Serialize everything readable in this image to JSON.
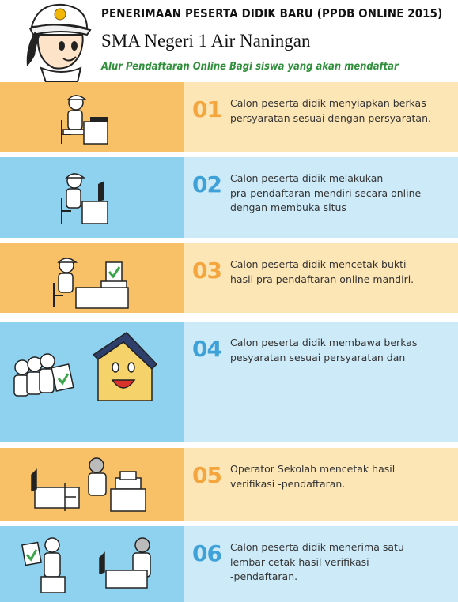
{
  "header": {
    "title": "PENERIMAAN PESERTA DIDIK BARU (PPDB ONLINE 2015)",
    "school": "SMA Negeri 1 Air Naningan",
    "subtitle": "Alur Pendaftaran Online Bagi siswa yang akan mendaftar"
  },
  "colors": {
    "orange_dark": "#f9c167",
    "orange_light": "#fde6b5",
    "blue_dark": "#8fd2ef",
    "blue_light": "#cdeaf8",
    "title_green": "#2f8f3a"
  },
  "steps": [
    {
      "number": "01",
      "lines": [
        "Calon peserta didik menyiapkan berkas",
        "persyaratan sesuai dengan persyaratan."
      ]
    },
    {
      "number": "02",
      "lines": [
        "Calon peserta didik melakukan",
        "pra-pendaftaran mendiri secara online",
        "dengan membuka situs"
      ]
    },
    {
      "number": "03",
      "lines": [
        "Calon peserta didik mencetak bukti",
        "hasil pra pendaftaran online mandiri."
      ]
    },
    {
      "number": "04",
      "lines": [
        "Calon peserta didik membawa berkas",
        "pesyaratan sesuai persyaratan dan"
      ]
    },
    {
      "number": "05",
      "lines": [
        "Operator Sekolah mencetak hasil",
        "verifikasi      -pendaftaran."
      ]
    },
    {
      "number": "06",
      "lines": [
        "Calon peserta didik menerima satu",
        "lembar cetak hasil verifikasi",
        "       -pendaftaran."
      ]
    }
  ]
}
